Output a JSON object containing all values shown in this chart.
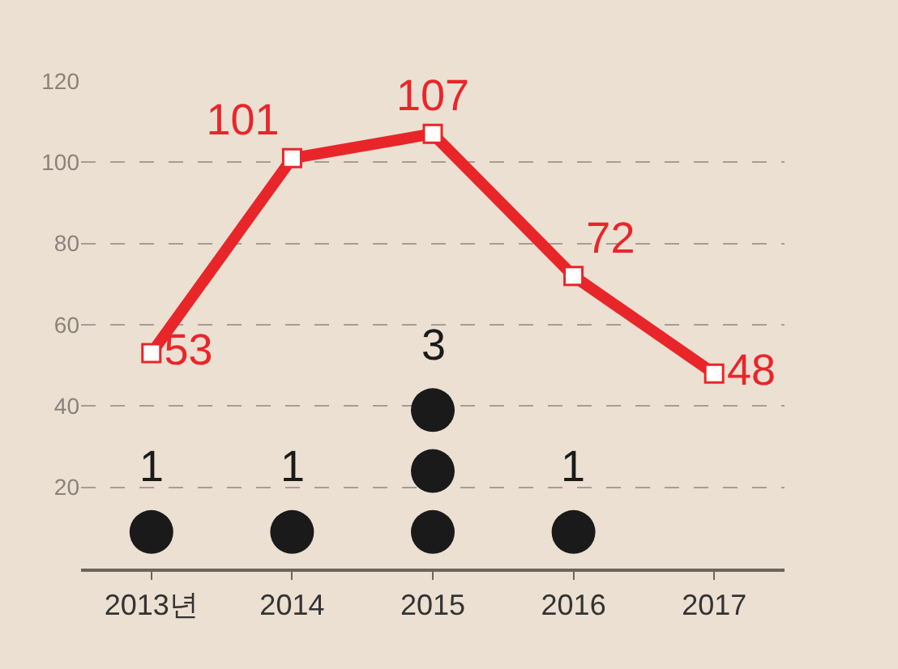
{
  "chart_data": {
    "type": "line",
    "categories": [
      "2013년",
      "2014",
      "2015",
      "2016",
      "2017"
    ],
    "series": [
      {
        "color": "#e8262a",
        "values": [
          53,
          101,
          107,
          72,
          48
        ],
        "marker": "square",
        "data_labels": true
      },
      {
        "type": "scatter",
        "color": "#1a1a1a",
        "values": [
          9,
          9,
          9,
          9,
          null
        ],
        "marker": "circle"
      },
      {
        "type": "scatter",
        "color": "#1a1a1a",
        "values": [
          null,
          null,
          24,
          null,
          null
        ],
        "marker": "circle"
      },
      {
        "type": "scatter",
        "color": "#1a1a1a",
        "values": [
          null,
          null,
          39,
          null,
          null
        ],
        "marker": "circle"
      }
    ],
    "annotations": [
      {
        "text": "1",
        "x": "2013년",
        "y": 9
      },
      {
        "text": "1",
        "x": "2014",
        "y": 9
      },
      {
        "text": "3",
        "x": "2015",
        "y": 39
      },
      {
        "text": "1",
        "x": "2016",
        "y": 9
      }
    ],
    "ylim": [
      0,
      120
    ],
    "yticks": [
      20,
      40,
      60,
      80,
      100,
      120
    ],
    "grid": "y",
    "legend": false
  }
}
